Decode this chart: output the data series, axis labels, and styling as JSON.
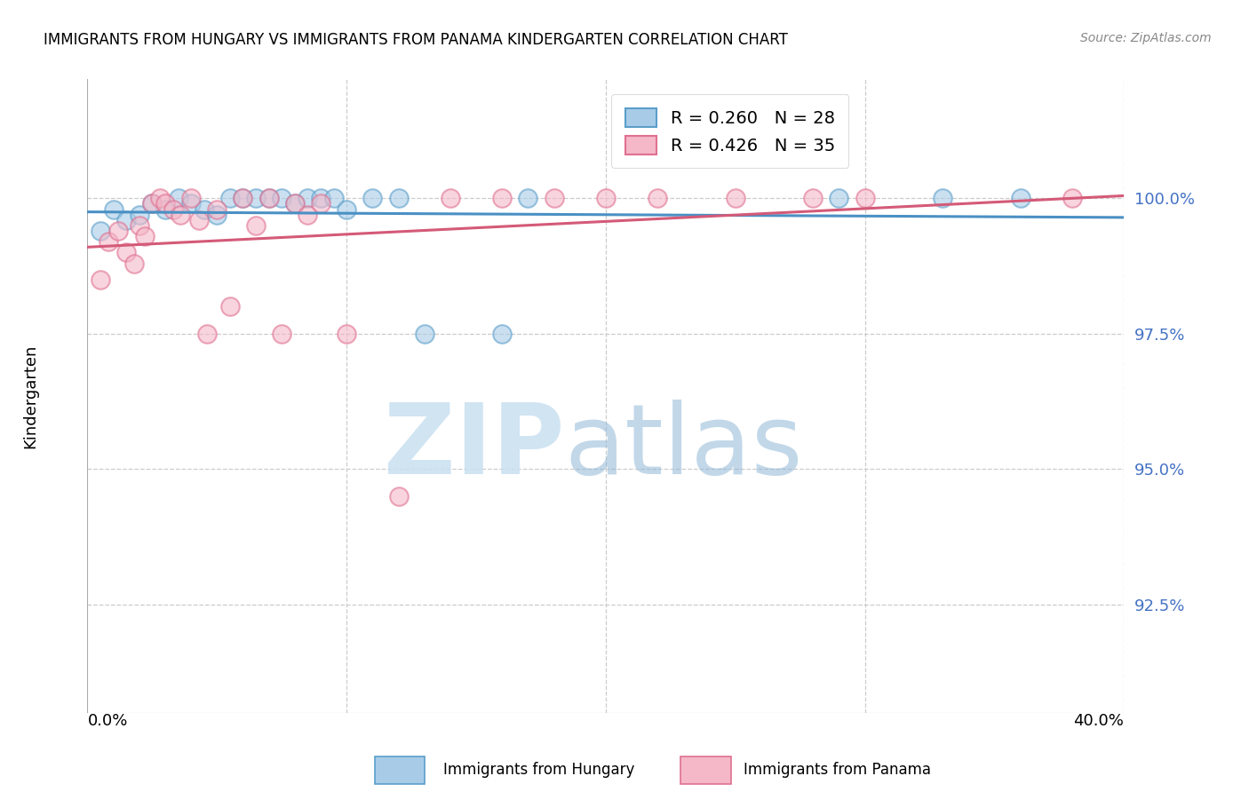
{
  "title": "IMMIGRANTS FROM HUNGARY VS IMMIGRANTS FROM PANAMA KINDERGARTEN CORRELATION CHART",
  "source": "Source: ZipAtlas.com",
  "ylabel": "Kindergarten",
  "ytick_labels": [
    "100.0%",
    "97.5%",
    "95.0%",
    "92.5%"
  ],
  "ytick_values": [
    1.0,
    0.975,
    0.95,
    0.925
  ],
  "xlim": [
    0.0,
    0.4
  ],
  "ylim": [
    0.905,
    1.022
  ],
  "legend_hungary": "R = 0.260   N = 28",
  "legend_panama": "R = 0.426   N = 35",
  "hungary_color": "#a8cce8",
  "panama_color": "#f4b8c8",
  "hungary_edge_color": "#5b9ec9",
  "panama_edge_color": "#e07090",
  "hungary_line_color": "#4a90c4",
  "panama_line_color": "#d45a78",
  "watermark_zip_color": "#c8e0f0",
  "watermark_atlas_color": "#90b8d8",
  "hungary_x": [
    0.005,
    0.01,
    0.015,
    0.02,
    0.025,
    0.03,
    0.035,
    0.04,
    0.045,
    0.05,
    0.055,
    0.06,
    0.065,
    0.07,
    0.075,
    0.08,
    0.085,
    0.09,
    0.095,
    0.1,
    0.11,
    0.12,
    0.13,
    0.16,
    0.17,
    0.29,
    0.33,
    0.36
  ],
  "hungary_y": [
    0.994,
    0.998,
    0.996,
    0.997,
    0.999,
    0.998,
    1.0,
    0.999,
    0.998,
    0.997,
    1.0,
    1.0,
    1.0,
    1.0,
    1.0,
    0.999,
    1.0,
    1.0,
    1.0,
    0.998,
    1.0,
    1.0,
    0.975,
    0.975,
    1.0,
    1.0,
    1.0,
    1.0
  ],
  "panama_x": [
    0.005,
    0.008,
    0.012,
    0.015,
    0.018,
    0.02,
    0.022,
    0.025,
    0.028,
    0.03,
    0.033,
    0.036,
    0.04,
    0.043,
    0.046,
    0.05,
    0.055,
    0.06,
    0.065,
    0.07,
    0.075,
    0.08,
    0.085,
    0.09,
    0.1,
    0.12,
    0.14,
    0.16,
    0.18,
    0.25,
    0.28,
    0.3,
    0.38,
    0.22,
    0.2
  ],
  "panama_y": [
    0.985,
    0.992,
    0.994,
    0.99,
    0.988,
    0.995,
    0.993,
    0.999,
    1.0,
    0.999,
    0.998,
    0.997,
    1.0,
    0.996,
    0.975,
    0.998,
    0.98,
    1.0,
    0.995,
    1.0,
    0.975,
    0.999,
    0.997,
    0.999,
    0.975,
    0.945,
    1.0,
    1.0,
    1.0,
    1.0,
    1.0,
    1.0,
    1.0,
    1.0,
    1.0
  ]
}
